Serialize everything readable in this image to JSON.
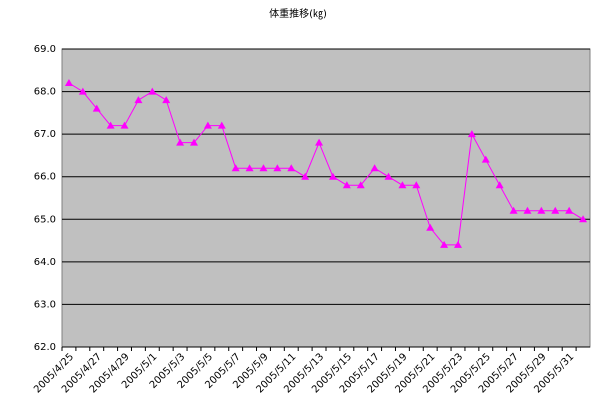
{
  "chart_data": {
    "type": "line",
    "title": "体重推移(㎏)",
    "categories": [
      "2005/4/25",
      null,
      "2005/4/27",
      null,
      "2005/4/29",
      null,
      "2005/5/1",
      null,
      "2005/5/3",
      null,
      "2005/5/5",
      null,
      "2005/5/7",
      null,
      "2005/5/9",
      null,
      "2005/5/11",
      null,
      "2005/5/13",
      null,
      "2005/5/15",
      null,
      "2005/5/17",
      null,
      "2005/5/19",
      null,
      "2005/5/21",
      null,
      "2005/5/23",
      null,
      "2005/5/25",
      null,
      "2005/5/27",
      null,
      "2005/5/29",
      null,
      "2005/5/31",
      null
    ],
    "values": [
      68.2,
      68.0,
      67.6,
      67.2,
      67.2,
      67.8,
      68.0,
      67.8,
      66.8,
      66.8,
      67.2,
      67.2,
      66.2,
      66.2,
      66.2,
      66.2,
      66.2,
      66.0,
      66.8,
      66.0,
      65.8,
      65.8,
      66.2,
      66.0,
      65.8,
      65.8,
      64.8,
      64.4,
      64.4,
      67.0,
      66.4,
      65.8,
      65.2,
      65.2,
      65.2,
      65.2,
      65.2,
      65.0
    ],
    "color": "#ff00ff",
    "ylim": [
      62,
      69
    ],
    "yticks": [
      {
        "value": 62,
        "label": "62.0"
      },
      {
        "value": 63,
        "label": "63.0"
      },
      {
        "value": 64,
        "label": "64.0"
      },
      {
        "value": 65,
        "label": "65.0"
      },
      {
        "value": 66,
        "label": "66.0"
      },
      {
        "value": 67,
        "label": "67.0"
      },
      {
        "value": 68,
        "label": "68.0"
      },
      {
        "value": 69,
        "label": "69.0"
      }
    ],
    "grid": true
  }
}
